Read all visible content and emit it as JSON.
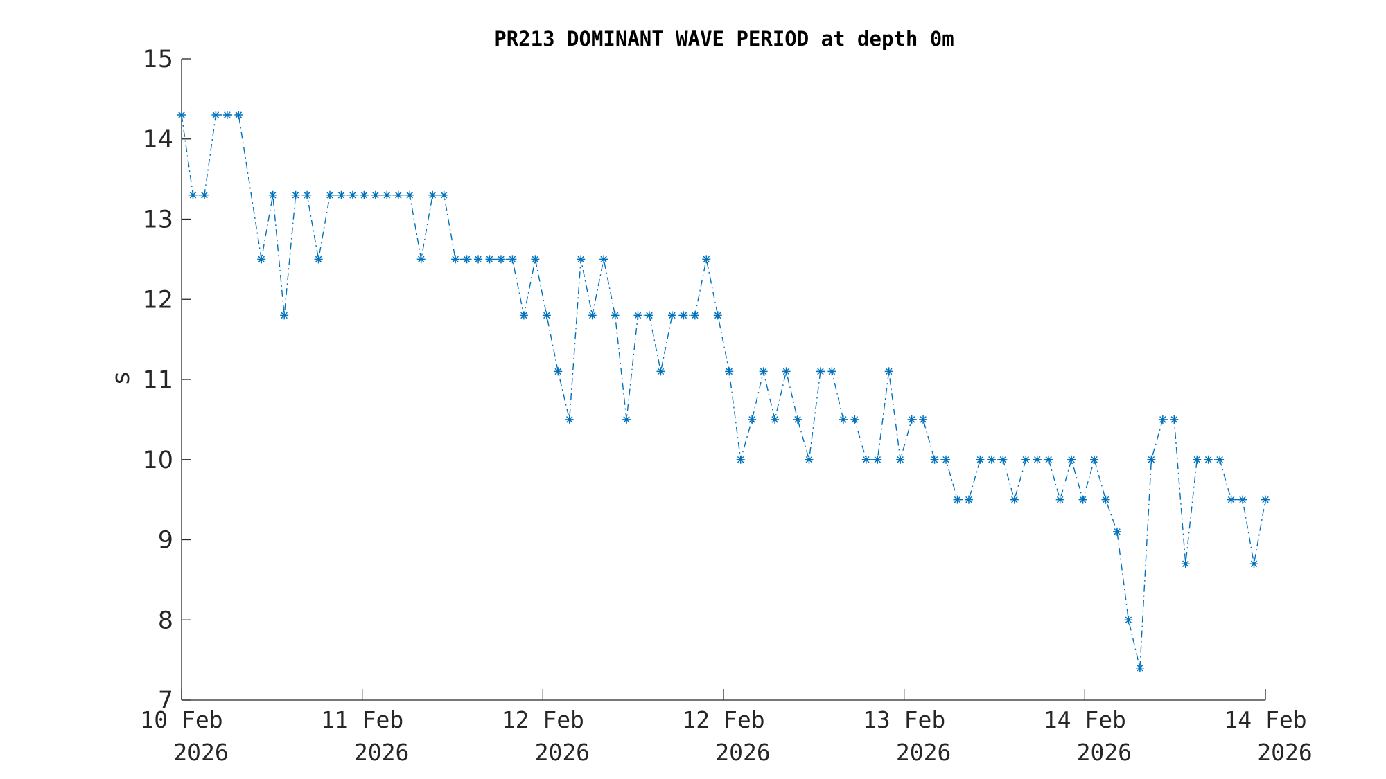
{
  "chart_data": {
    "type": "line",
    "title": "PR213 DOMINANT WAVE PERIOD at depth 0m",
    "xlabel": "",
    "ylabel": "s",
    "ylim": [
      7,
      15
    ],
    "yticks": [
      "7",
      "8",
      "9",
      "10",
      "11",
      "12",
      "13",
      "14",
      "15"
    ],
    "xtick_labels": [
      {
        "line1": "10 Feb",
        "line2": "2026"
      },
      {
        "line1": "11 Feb",
        "line2": "2026"
      },
      {
        "line1": "12 Feb",
        "line2": "2026"
      },
      {
        "line1": "12 Feb",
        "line2": "2026"
      },
      {
        "line1": "13 Feb",
        "line2": "2026"
      },
      {
        "line1": "14 Feb",
        "line2": "2026"
      },
      {
        "line1": "14 Feb",
        "line2": "2026"
      }
    ],
    "grid": false,
    "line_style": "dash-dot",
    "marker": "asterisk",
    "color": "#0072BD",
    "series": [
      {
        "values": [
          14.3,
          13.3,
          13.3,
          14.3,
          14.3,
          14.3,
          13.4,
          12.5,
          13.3,
          11.8,
          13.3,
          13.3,
          12.5,
          13.3,
          13.3,
          13.3,
          13.3,
          13.3,
          13.3,
          13.3,
          13.3,
          12.5,
          13.3,
          13.3,
          12.5,
          12.5,
          12.5,
          12.5,
          12.5,
          12.5,
          11.8,
          12.5,
          11.8,
          11.1,
          10.5,
          12.5,
          11.8,
          12.5,
          11.8,
          10.5,
          11.8,
          11.8,
          11.1,
          11.8,
          11.8,
          11.8,
          12.5,
          11.8,
          11.1,
          10.0,
          10.5,
          11.1,
          10.5,
          11.1,
          10.5,
          10.0,
          11.1,
          11.1,
          10.5,
          10.5,
          10.0,
          10.0,
          11.1,
          10.0,
          10.5,
          10.5,
          10.0,
          10.0,
          9.5,
          9.5,
          10.0,
          10.0,
          10.0,
          9.5,
          10.0,
          10.0,
          10.0,
          9.5,
          10.0,
          9.5,
          10.0,
          9.5,
          9.1,
          8.0,
          7.4,
          10.0,
          10.5,
          10.5,
          8.7,
          10.0,
          10.0,
          10.0,
          9.5,
          9.5,
          8.7,
          9.5
        ],
        "markers": [
          true,
          true,
          true,
          true,
          true,
          true,
          false,
          true,
          true,
          true,
          true,
          true,
          true,
          true,
          true,
          true,
          true,
          true,
          true,
          true,
          true,
          true,
          true,
          true,
          true,
          true,
          true,
          true,
          true,
          true,
          true,
          true,
          true,
          true,
          true,
          true,
          true,
          true,
          true,
          true,
          true,
          true,
          true,
          true,
          true,
          true,
          true,
          true,
          true,
          true,
          true,
          true,
          true,
          true,
          true,
          true,
          true,
          true,
          true,
          true,
          true,
          true,
          true,
          true,
          true,
          true,
          true,
          true,
          true,
          true,
          true,
          true,
          true,
          true,
          true,
          true,
          true,
          true,
          true,
          true,
          true,
          true,
          true,
          true,
          true,
          true,
          true,
          true,
          true,
          true,
          true,
          true,
          true,
          true,
          true,
          true
        ]
      }
    ]
  }
}
